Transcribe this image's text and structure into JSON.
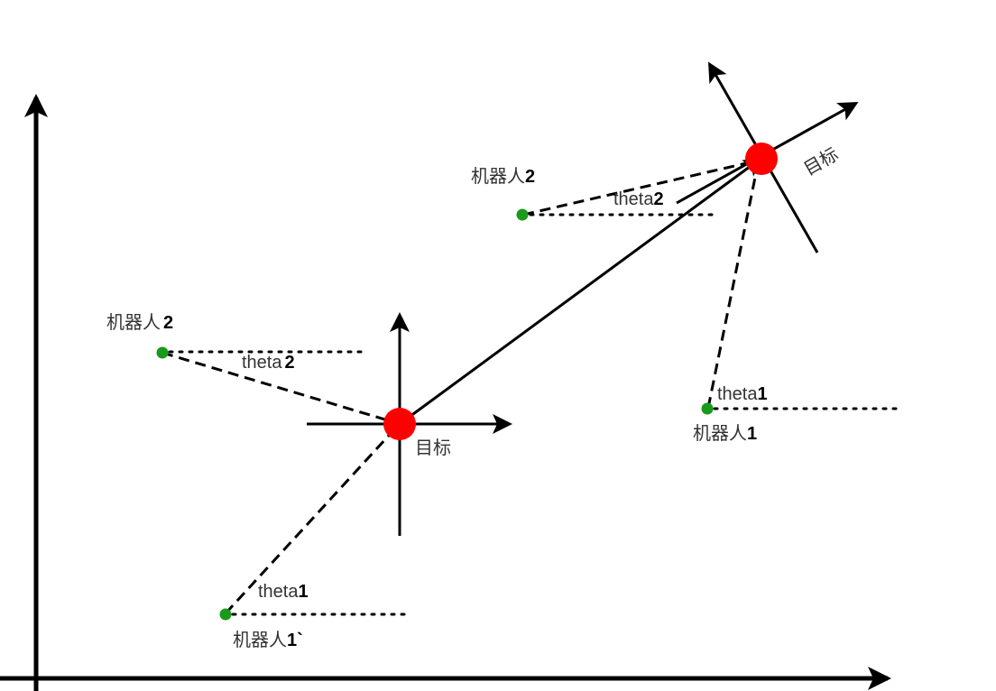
{
  "labels": {
    "target_a": "目标",
    "target_b": "目标",
    "robot1_a_text": "机器人",
    "robot1_a_num": "1`",
    "robot2_a_text": "机器人",
    "robot2_a_num": "2",
    "robot1_b_text": "机器人",
    "robot1_b_num": "1",
    "robot2_b_text": "机器人",
    "robot2_b_num": "2",
    "theta1_a_text": "theta",
    "theta1_a_num": "1",
    "theta2_a_text": "theta",
    "theta2_a_num": "2",
    "theta1_b_text": "theta",
    "theta1_b_num": "1",
    "theta2_b_text": "theta",
    "theta2_b_num": "2"
  },
  "colors": {
    "target": "#ff0000",
    "robot": "#1a9a1a",
    "line": "#000000"
  }
}
